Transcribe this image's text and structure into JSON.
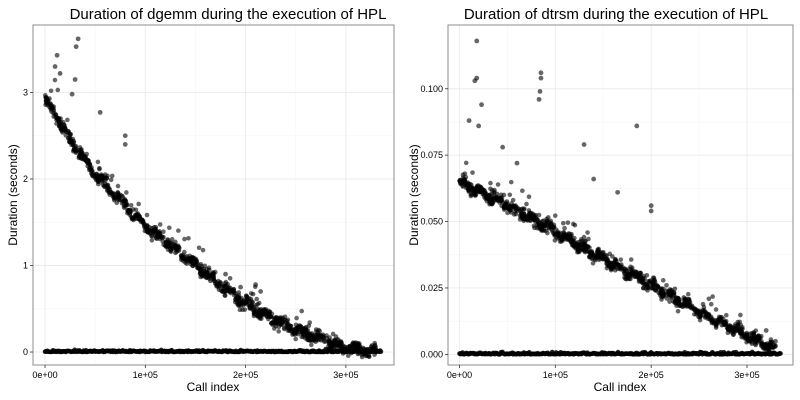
{
  "chart_data": [
    {
      "type": "scatter",
      "title": "Duration of dgemm during the execution of HPL",
      "xlabel": "Call index",
      "ylabel": "Duration (seconds)",
      "xlim": [
        -12000,
        348000
      ],
      "ylim": [
        -0.15,
        3.78
      ],
      "xticks": [
        0,
        100000,
        200000,
        300000
      ],
      "xtick_labels": [
        "0e+00",
        "1e+05",
        "2e+05",
        "3e+05"
      ],
      "yticks": [
        0,
        1,
        2,
        3
      ],
      "ytick_labels": [
        "0",
        "1",
        "2",
        "3"
      ],
      "grid": true,
      "legend": "none",
      "series": [
        {
          "trend": {
            "x": [
              0,
              10000,
              25000,
              50000,
              100000,
              150000,
              200000,
              250000,
              300000,
              330000
            ],
            "y": [
              2.9,
              2.75,
              2.45,
              2.05,
              1.45,
              1.0,
              0.55,
              0.25,
              0.05,
              0.01
            ]
          },
          "baseline": {
            "x": [
              0,
              335000
            ],
            "y": 0.0
          },
          "outliers": [
            {
              "x": 12000,
              "y": 3.43
            },
            {
              "x": 33000,
              "y": 3.62
            },
            {
              "x": 31000,
              "y": 3.53
            },
            {
              "x": 10000,
              "y": 3.3
            },
            {
              "x": 15000,
              "y": 3.22
            },
            {
              "x": 30000,
              "y": 3.15
            },
            {
              "x": 27000,
              "y": 2.98
            },
            {
              "x": 55000,
              "y": 2.77
            },
            {
              "x": 80000,
              "y": 2.5
            },
            {
              "x": 80000,
              "y": 2.4
            },
            {
              "x": 180000,
              "y": 0.9
            },
            {
              "x": 210000,
              "y": 0.78
            },
            {
              "x": 215000,
              "y": 0.7
            },
            {
              "x": 195000,
              "y": 0.75
            }
          ]
        }
      ]
    },
    {
      "type": "scatter",
      "title": "Duration of dtrsm during the execution of HPL",
      "xlabel": "Call index",
      "ylabel": "Duration (seconds)",
      "xlim": [
        -12000,
        348000
      ],
      "ylim": [
        -0.004,
        0.124
      ],
      "xticks": [
        0,
        100000,
        200000,
        300000
      ],
      "xtick_labels": [
        "0e+00",
        "1e+05",
        "2e+05",
        "3e+05"
      ],
      "yticks": [
        0,
        0.025,
        0.05,
        0.075,
        0.1
      ],
      "ytick_labels": [
        "0.000",
        "0.025",
        "0.050",
        "0.075",
        "0.100"
      ],
      "grid": true,
      "legend": "none",
      "series": [
        {
          "trend": {
            "x": [
              0,
              50000,
              100000,
              150000,
              200000,
              250000,
              300000,
              330000
            ],
            "y": [
              0.065,
              0.056,
              0.046,
              0.036,
              0.026,
              0.016,
              0.007,
              0.002
            ]
          },
          "baseline": {
            "x": [
              0,
              335000
            ],
            "y": 0.0
          },
          "outliers": [
            {
              "x": 18000,
              "y": 0.118
            },
            {
              "x": 18000,
              "y": 0.104
            },
            {
              "x": 16000,
              "y": 0.103
            },
            {
              "x": 23000,
              "y": 0.094
            },
            {
              "x": 85000,
              "y": 0.106
            },
            {
              "x": 85000,
              "y": 0.104
            },
            {
              "x": 84000,
              "y": 0.099
            },
            {
              "x": 83000,
              "y": 0.096
            },
            {
              "x": 10000,
              "y": 0.088
            },
            {
              "x": 20000,
              "y": 0.086
            },
            {
              "x": 130000,
              "y": 0.079
            },
            {
              "x": 185000,
              "y": 0.086
            },
            {
              "x": 200000,
              "y": 0.056
            },
            {
              "x": 200000,
              "y": 0.054
            },
            {
              "x": 165000,
              "y": 0.061
            },
            {
              "x": 140000,
              "y": 0.066
            },
            {
              "x": 60000,
              "y": 0.072
            },
            {
              "x": 45000,
              "y": 0.078
            },
            {
              "x": 320000,
              "y": 0.009
            }
          ]
        }
      ]
    }
  ]
}
